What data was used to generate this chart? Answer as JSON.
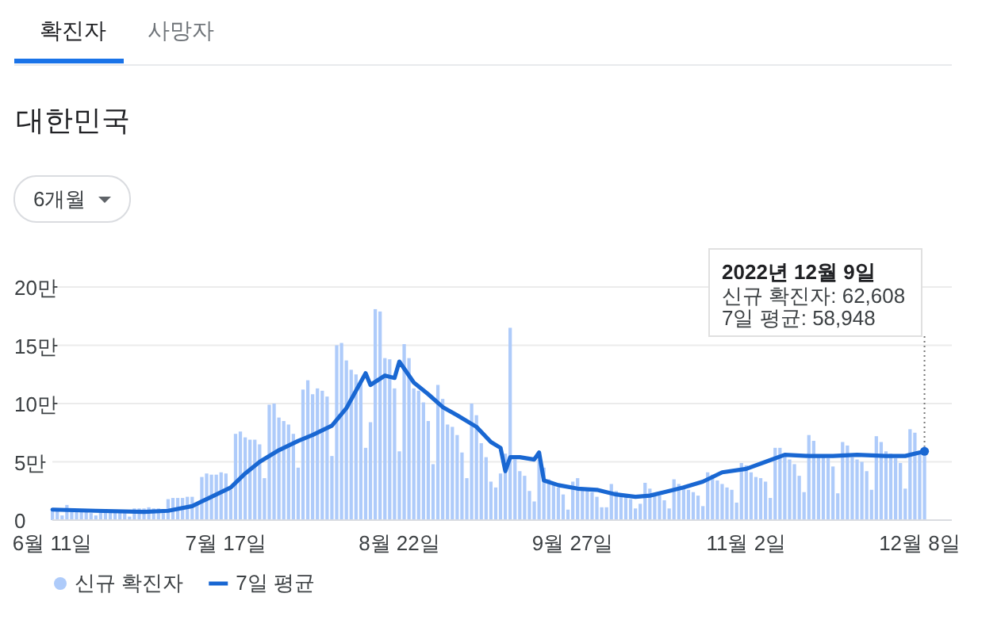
{
  "chart_data": {
    "type": "bar",
    "title": "대한민국",
    "annotations": [
      "확진자",
      "사망자",
      "6개월",
      "2022년 12월 9일",
      "신규 확진자: 62,608",
      "7일 평균: 58,948"
    ],
    "xlim": [
      "2022-06-09",
      "2022-12-15"
    ],
    "xticks": [
      {
        "value": "2022-06-11",
        "label": "6월 11일"
      },
      {
        "value": "2022-07-17",
        "label": "7월 17일"
      },
      {
        "value": "2022-08-22",
        "label": "8월 22일"
      },
      {
        "value": "2022-09-27",
        "label": "9월 27일"
      },
      {
        "value": "2022-11-02",
        "label": "11월 2일"
      },
      {
        "value": "2022-12-08",
        "label": "12월 8일"
      }
    ],
    "ylim": [
      0,
      20
    ],
    "yticks": [
      0,
      {
        "value": 5,
        "label": "5만"
      },
      {
        "value": 10,
        "label": "10만"
      },
      {
        "value": 15,
        "label": "15만"
      },
      {
        "value": 20,
        "label": "20만"
      }
    ],
    "grid": "y",
    "legend": "bottom left",
    "ref_lines": [
      {
        "axis": "x",
        "value": "2022-12-09",
        "color": "#777777",
        "line_style": "dotted"
      }
    ],
    "series": [
      {
        "name": "신규 확진자",
        "color": "#aecbfa",
        "x": [
          "2022-06-11",
          "2022-06-12",
          "2022-06-13",
          "2022-06-14",
          "2022-06-15",
          "2022-06-16",
          "2022-06-17",
          "2022-06-18",
          "2022-06-19",
          "2022-06-20",
          "2022-06-21",
          "2022-06-22",
          "2022-06-23",
          "2022-06-24",
          "2022-06-25",
          "2022-06-26",
          "2022-06-27",
          "2022-06-28",
          "2022-06-29",
          "2022-06-30",
          "2022-07-01",
          "2022-07-02",
          "2022-07-03",
          "2022-07-04",
          "2022-07-05",
          "2022-07-06",
          "2022-07-07",
          "2022-07-08",
          "2022-07-09",
          "2022-07-10",
          "2022-07-11",
          "2022-07-12",
          "2022-07-13",
          "2022-07-14",
          "2022-07-15",
          "2022-07-16",
          "2022-07-17",
          "2022-07-18",
          "2022-07-19",
          "2022-07-20",
          "2022-07-21",
          "2022-07-22",
          "2022-07-23",
          "2022-07-24",
          "2022-07-25",
          "2022-07-26",
          "2022-07-27",
          "2022-07-28",
          "2022-07-29",
          "2022-07-30",
          "2022-07-31",
          "2022-08-01",
          "2022-08-02",
          "2022-08-03",
          "2022-08-04",
          "2022-08-05",
          "2022-08-06",
          "2022-08-07",
          "2022-08-08",
          "2022-08-09",
          "2022-08-10",
          "2022-08-11",
          "2022-08-12",
          "2022-08-13",
          "2022-08-14",
          "2022-08-15",
          "2022-08-16",
          "2022-08-17",
          "2022-08-18",
          "2022-08-19",
          "2022-08-20",
          "2022-08-21",
          "2022-08-22",
          "2022-08-23",
          "2022-08-24",
          "2022-08-25",
          "2022-08-26",
          "2022-08-27",
          "2022-08-28",
          "2022-08-29",
          "2022-08-30",
          "2022-08-31",
          "2022-09-01",
          "2022-09-02",
          "2022-09-03",
          "2022-09-04",
          "2022-09-05",
          "2022-09-06",
          "2022-09-07",
          "2022-09-08",
          "2022-09-09",
          "2022-09-10",
          "2022-09-11",
          "2022-09-12",
          "2022-09-13",
          "2022-09-14",
          "2022-09-15",
          "2022-09-16",
          "2022-09-17",
          "2022-09-18",
          "2022-09-19",
          "2022-09-20",
          "2022-09-21",
          "2022-09-22",
          "2022-09-23",
          "2022-09-24",
          "2022-09-25",
          "2022-09-26",
          "2022-09-27",
          "2022-09-28",
          "2022-09-29",
          "2022-09-30",
          "2022-10-01",
          "2022-10-02",
          "2022-10-03",
          "2022-10-04",
          "2022-10-05",
          "2022-10-06",
          "2022-10-07",
          "2022-10-08",
          "2022-10-09",
          "2022-10-10",
          "2022-10-11",
          "2022-10-12",
          "2022-10-13",
          "2022-10-14",
          "2022-10-15",
          "2022-10-16",
          "2022-10-17",
          "2022-10-18",
          "2022-10-19",
          "2022-10-20",
          "2022-10-21",
          "2022-10-22",
          "2022-10-23",
          "2022-10-24",
          "2022-10-25",
          "2022-10-26",
          "2022-10-27",
          "2022-10-28",
          "2022-10-29",
          "2022-10-30",
          "2022-10-31",
          "2022-11-01",
          "2022-11-02",
          "2022-11-03",
          "2022-11-04",
          "2022-11-05",
          "2022-11-06",
          "2022-11-07",
          "2022-11-08",
          "2022-11-09",
          "2022-11-10",
          "2022-11-11",
          "2022-11-12",
          "2022-11-13",
          "2022-11-14",
          "2022-11-15",
          "2022-11-16",
          "2022-11-17",
          "2022-11-18",
          "2022-11-19",
          "2022-11-20",
          "2022-11-21",
          "2022-11-22",
          "2022-11-23",
          "2022-11-24",
          "2022-11-25",
          "2022-11-26",
          "2022-11-27",
          "2022-11-28",
          "2022-11-29",
          "2022-11-30",
          "2022-12-01",
          "2022-12-02",
          "2022-12-03",
          "2022-12-04",
          "2022-12-05",
          "2022-12-06",
          "2022-12-07",
          "2022-12-08",
          "2022-12-09"
        ],
        "values": [
          0.9,
          0.8,
          0.4,
          1.3,
          1.0,
          0.9,
          0.8,
          0.7,
          0.6,
          0.4,
          0.9,
          0.9,
          0.8,
          0.7,
          0.7,
          0.6,
          0.3,
          1.0,
          1.0,
          1.0,
          1.1,
          1.0,
          1.0,
          0.6,
          1.8,
          1.9,
          1.9,
          1.9,
          2.0,
          2.0,
          1.3,
          3.7,
          4.0,
          3.9,
          3.9,
          4.1,
          4.0,
          2.6,
          7.4,
          7.6,
          7.1,
          6.9,
          6.9,
          6.5,
          3.6,
          9.9,
          10.0,
          8.8,
          8.5,
          8.2,
          7.4,
          4.5,
          11.2,
          12.0,
          10.8,
          11.3,
          11.1,
          10.6,
          5.5,
          15.0,
          15.2,
          13.7,
          12.9,
          12.5,
          12.0,
          6.2,
          8.4,
          18.1,
          17.9,
          13.9,
          13.8,
          11.3,
          5.9,
          15.1,
          13.9,
          11.3,
          11.1,
          10.1,
          8.5,
          4.8,
          11.6,
          10.4,
          8.2,
          8.0,
          7.3,
          5.8,
          3.6,
          10.0,
          9.0,
          6.6,
          5.4,
          3.3,
          2.8,
          4.0,
          5.7,
          16.5,
          5.2,
          4.2,
          3.8,
          2.5,
          1.6,
          5.2,
          4.5,
          3.5,
          3.1,
          2.8,
          2.2,
          0.9,
          3.3,
          3.6,
          2.8,
          2.6,
          2.4,
          2.0,
          1.1,
          1.1,
          3.1,
          2.5,
          2.2,
          2.2,
          1.8,
          1.0,
          1.4,
          3.2,
          2.7,
          2.2,
          2.1,
          1.7,
          1.0,
          3.5,
          3.1,
          2.7,
          2.6,
          2.4,
          2.1,
          1.2,
          4.1,
          3.9,
          3.4,
          3.1,
          2.8,
          2.6,
          1.5,
          4.9,
          4.7,
          4.1,
          3.7,
          3.6,
          3.3,
          1.9,
          6.2,
          6.2,
          5.5,
          5.2,
          4.8,
          3.8,
          2.4,
          7.3,
          6.8,
          5.5,
          5.5,
          5.3,
          4.6,
          2.3,
          6.7,
          6.4,
          5.4,
          5.2,
          5.0,
          4.2,
          2.6,
          7.2,
          6.7,
          5.9,
          5.7,
          5.3,
          4.9,
          2.7,
          7.8,
          7.5,
          5.9,
          6.3
        ]
      },
      {
        "name": "7일 평균",
        "type": "line",
        "color": "#1967d2",
        "marker": "none",
        "x": [
          "2022-06-11",
          "2022-06-20",
          "2022-06-30",
          "2022-07-05",
          "2022-07-10",
          "2022-07-14",
          "2022-07-18",
          "2022-07-21",
          "2022-07-24",
          "2022-07-28",
          "2022-08-01",
          "2022-08-04",
          "2022-08-08",
          "2022-08-11",
          "2022-08-15",
          "2022-08-16",
          "2022-08-19",
          "2022-08-21",
          "2022-08-22",
          "2022-08-25",
          "2022-08-28",
          "2022-08-31",
          "2022-09-03",
          "2022-09-07",
          "2022-09-10",
          "2022-09-12",
          "2022-09-13",
          "2022-09-14",
          "2022-09-16",
          "2022-09-19",
          "2022-09-20",
          "2022-09-21",
          "2022-09-24",
          "2022-09-28",
          "2022-10-02",
          "2022-10-06",
          "2022-10-10",
          "2022-10-13",
          "2022-10-16",
          "2022-10-20",
          "2022-10-24",
          "2022-10-28",
          "2022-11-02",
          "2022-11-06",
          "2022-11-10",
          "2022-11-15",
          "2022-11-20",
          "2022-11-25",
          "2022-12-01",
          "2022-12-05",
          "2022-12-09"
        ],
        "values": [
          0.9,
          0.8,
          0.7,
          0.8,
          1.2,
          2.0,
          2.8,
          4.0,
          5.0,
          6.0,
          6.8,
          7.3,
          8.1,
          9.6,
          12.6,
          11.6,
          12.4,
          12.2,
          13.6,
          11.8,
          10.8,
          9.7,
          9.0,
          8.0,
          6.7,
          6.2,
          4.2,
          5.4,
          5.4,
          5.2,
          5.8,
          3.4,
          3.0,
          2.7,
          2.6,
          2.2,
          2.0,
          2.1,
          2.4,
          2.8,
          3.3,
          4.1,
          4.4,
          5.0,
          5.6,
          5.5,
          5.5,
          5.6,
          5.5,
          5.5,
          5.9
        ]
      }
    ]
  }
}
